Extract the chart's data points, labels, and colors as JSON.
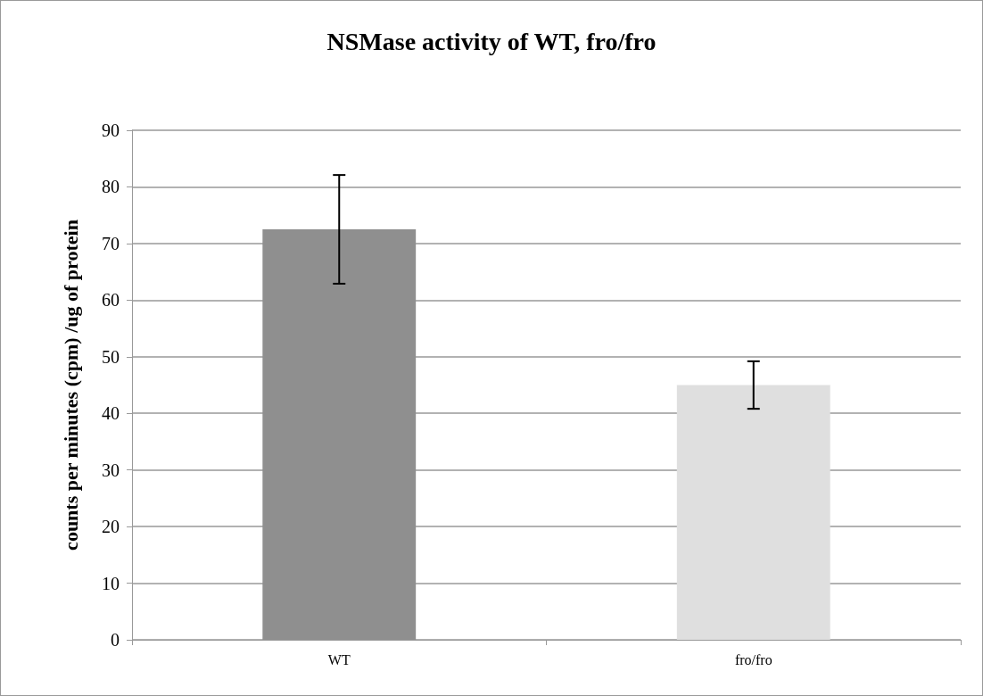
{
  "chart_data": {
    "type": "bar",
    "title": "NSMase activity of WT, fro/fro",
    "ylabel": "counts per minutes (cpm) /ug of protein",
    "categories": [
      "WT",
      "fro/fro"
    ],
    "values": [
      72.5,
      45.0
    ],
    "colors": [
      "#8f8f8f",
      "#dfdfdf"
    ],
    "errors": [
      9.6,
      4.2
    ],
    "ylim": [
      0,
      90
    ],
    "yticks": [
      0,
      10,
      20,
      30,
      40,
      50,
      60,
      70,
      80,
      90
    ],
    "grid": "y"
  }
}
